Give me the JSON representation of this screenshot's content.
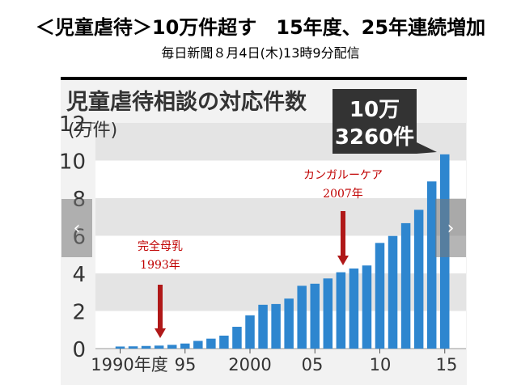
{
  "headline": "＜児童虐待＞10万件超す　15年度、25年連続増加",
  "source_line": "毎日新聞８月4日(木)13時9分配信",
  "nav": {
    "prev_symbol": "‹",
    "next_symbol": "›"
  },
  "chart_data": {
    "type": "bar",
    "title": "児童虐待相談の対応件数",
    "unit_label": "(万件)",
    "xlabel": "",
    "ylabel": "",
    "categories": [
      "1990",
      "1991",
      "1992",
      "1993",
      "1994",
      "1995",
      "1996",
      "1997",
      "1998",
      "1999",
      "2000",
      "2001",
      "2002",
      "2003",
      "2004",
      "2005",
      "2006",
      "2007",
      "2008",
      "2009",
      "2010",
      "2011",
      "2012",
      "2013",
      "2014",
      "2015"
    ],
    "values": [
      0.11,
      0.12,
      0.14,
      0.16,
      0.2,
      0.27,
      0.41,
      0.53,
      0.69,
      1.16,
      1.77,
      2.33,
      2.37,
      2.66,
      3.34,
      3.45,
      3.73,
      4.06,
      4.26,
      4.42,
      5.62,
      5.99,
      6.67,
      7.38,
      8.89,
      10.33
    ],
    "x_tick_labels": [
      "1990年度",
      "95",
      "2000",
      "05",
      "10",
      "15"
    ],
    "y_ticks": [
      0,
      2,
      4,
      6,
      8,
      10,
      12
    ],
    "ylim": [
      0,
      12
    ],
    "grid": "banded",
    "bar_color": "#2e86cf",
    "callout": {
      "line1": "10万",
      "line2": "3260件"
    },
    "annotations": [
      {
        "text_line1": "完全母乳",
        "text_line2": "1993年",
        "category": "1993",
        "color": "#c00000"
      },
      {
        "text_line1": "カンガルーケア",
        "text_line2": "2007年",
        "category": "2007",
        "color": "#c00000"
      }
    ]
  }
}
